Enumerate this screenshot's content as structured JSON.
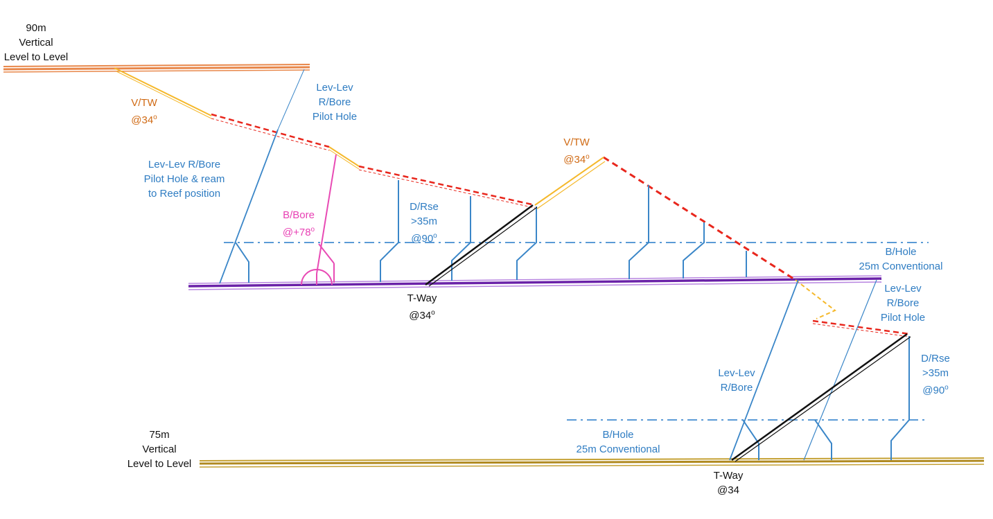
{
  "colors": {
    "level_90": "#e8874a",
    "level_75": "#c4a032",
    "purple_level": "#8a3fc7",
    "borehole_blue": "#3a86c8",
    "dashed_red": "#e8261c",
    "travelling_way": "#f5b82a",
    "bore_pink": "#e84ab4",
    "tway_black": "#111111"
  },
  "labels": {
    "top_level": [
      "90m",
      "Vertical",
      "Level to Level"
    ],
    "bottom_level": [
      "75m",
      "Vertical",
      "Level to Level"
    ],
    "vtw_1": {
      "line1": "V/TW",
      "line2": "@34",
      "deg": "o"
    },
    "vtw_2": {
      "line1": "V/TW",
      "line2": "@34",
      "deg": "o"
    },
    "lev_lev_pilot_top": [
      "Lev-Lev",
      "R/Bore",
      "Pilot Hole"
    ],
    "lev_lev_ream": [
      "Lev-Lev R/Bore",
      "Pilot Hole & ream",
      "to Reef position"
    ],
    "bbore": {
      "line1": "B/Bore",
      "line2": "@+78",
      "deg": "o"
    },
    "drse_1": {
      "line1": "D/Rse",
      "line2": ">35m",
      "line3": "@90",
      "deg": "o"
    },
    "drse_2": {
      "line1": "D/Rse",
      "line2": ">35m",
      "line3": "@90",
      "deg": "o"
    },
    "bhole_1": [
      "B/Hole",
      "25m Conventional"
    ],
    "bhole_2": [
      "B/Hole",
      "25m Conventional"
    ],
    "lev_lev_pilot_right": [
      "Lev-Lev",
      "R/Bore",
      "Pilot Hole"
    ],
    "lev_lev_rbore": [
      "Lev-Lev",
      "R/Bore"
    ],
    "tway_1": {
      "line1": "T-Way",
      "line2": "@34",
      "deg": "o"
    },
    "tway_2": {
      "line1": "T-Way",
      "line2": "@34"
    }
  }
}
